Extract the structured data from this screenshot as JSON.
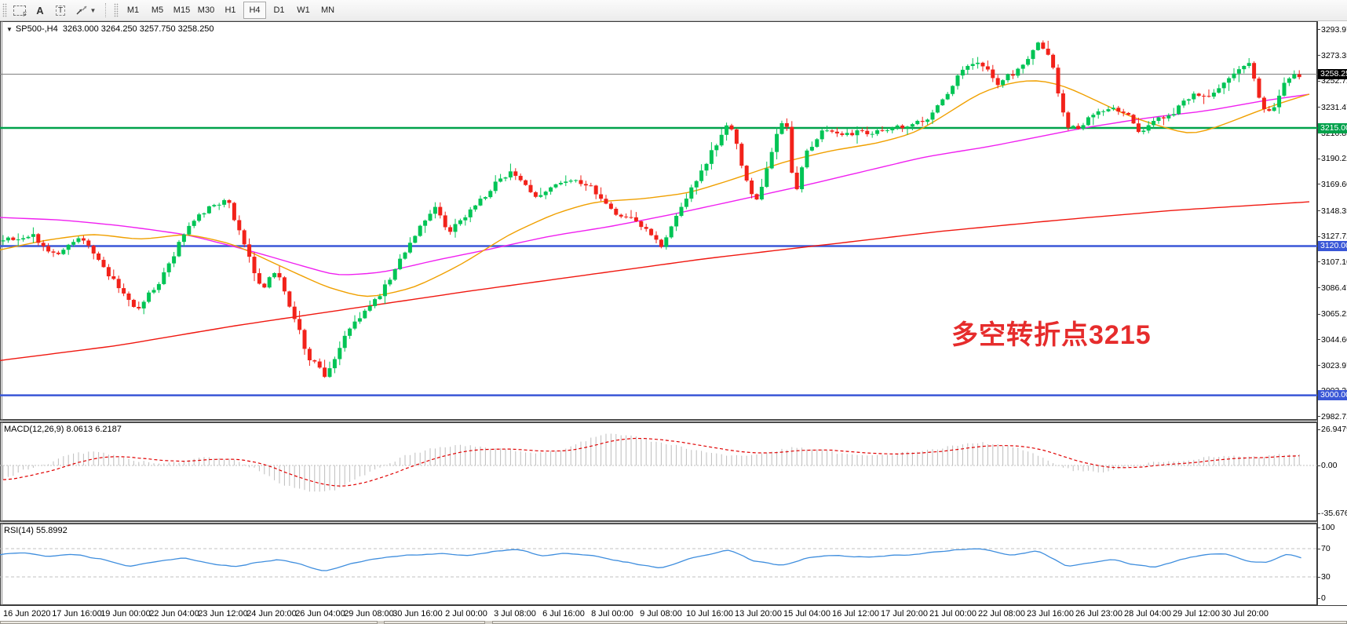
{
  "toolbar": {
    "icons": {
      "frame_label": "F",
      "text_a": "A",
      "text_t": "T",
      "arrows_glyph": "⇱⇲",
      "caret": "▼"
    },
    "timeframes": [
      "M1",
      "M5",
      "M15",
      "M30",
      "H1",
      "H4",
      "D1",
      "W1",
      "MN"
    ],
    "active_timeframe": "H4"
  },
  "header": {
    "collapse_caret": "▼",
    "symbol_period": "SP500-,H4",
    "ohlc": "3263.000 3264.250 3257.750 3258.250"
  },
  "annotation": {
    "text": "多空转折点3215",
    "color": "#e62c2c"
  },
  "chart_data": {
    "type": "candlestick",
    "symbol": "SP500-",
    "timeframe": "H4",
    "current_ohlc": {
      "open": 3263.0,
      "high": 3264.25,
      "low": 3257.75,
      "close": 3258.25
    },
    "colors": {
      "bull": "#00c455",
      "bear": "#f2221a",
      "ma_red": "#f01810",
      "ma_magenta": "#f020f0",
      "ma_orange": "#f0a000",
      "level_green": "#00a14b",
      "level_blue": "#3a57d7",
      "current_line": "#808080",
      "macd_histogram": "#bdbdbd",
      "macd_signal": "#e00000",
      "rsi_line": "#3f8ede"
    },
    "price_axis_ticks": [
      "3293.97",
      "3273.35",
      "3252.72",
      "3231.47",
      "3210.85",
      "3190.22",
      "3169.60",
      "3148.35",
      "3127.72",
      "3107.10",
      "3086.47",
      "3065.22",
      "3044.60",
      "3023.97",
      "3003.35",
      "2982.72"
    ],
    "levels": [
      {
        "value": 3258.25,
        "label": "3258.25",
        "kind": "current-price",
        "tag_bg": "#000000",
        "line_color": "#808080"
      },
      {
        "value": 3215.0,
        "label": "3215.00",
        "kind": "horizontal-line",
        "tag_bg": "#00a14b",
        "line_color": "#00a14b"
      },
      {
        "value": 3120.0,
        "label": "3120.00",
        "kind": "horizontal-line",
        "tag_bg": "#3a57d7",
        "line_color": "#3a57d7"
      },
      {
        "value": 3000.0,
        "label": "3000.00",
        "kind": "horizontal-line",
        "tag_bg": "#3a57d7",
        "line_color": "#3a57d7"
      }
    ],
    "time_labels": [
      "16 Jun 2020",
      "17 Jun 16:00",
      "19 Jun 00:00",
      "22 Jun 04:00",
      "23 Jun 12:00",
      "24 Jun 20:00",
      "26 Jun 04:00",
      "29 Jun 08:00",
      "30 Jun 16:00",
      "2 Jul 00:00",
      "3 Jul 08:00",
      "6 Jul 16:00",
      "8 Jul 00:00",
      "9 Jul 08:00",
      "10 Jul 16:00",
      "13 Jul 20:00",
      "15 Jul 04:00",
      "16 Jul 12:00",
      "17 Jul 20:00",
      "21 Jul 00:00",
      "22 Jul 08:00",
      "23 Jul 16:00",
      "26 Jul 23:00",
      "28 Jul 04:00",
      "29 Jul 12:00",
      "30 Jul 20:00"
    ],
    "close_path_anchors": [
      [
        3,
        3124
      ],
      [
        40,
        3130
      ],
      [
        70,
        3112
      ],
      [
        105,
        3128
      ],
      [
        140,
        3096
      ],
      [
        172,
        3068
      ],
      [
        205,
        3092
      ],
      [
        240,
        3138
      ],
      [
        268,
        3152
      ],
      [
        290,
        3157
      ],
      [
        312,
        3120
      ],
      [
        332,
        3085
      ],
      [
        352,
        3100
      ],
      [
        372,
        3068
      ],
      [
        392,
        3032
      ],
      [
        415,
        3016
      ],
      [
        438,
        3046
      ],
      [
        462,
        3066
      ],
      [
        485,
        3082
      ],
      [
        508,
        3106
      ],
      [
        532,
        3133
      ],
      [
        552,
        3152
      ],
      [
        572,
        3132
      ],
      [
        598,
        3148
      ],
      [
        625,
        3166
      ],
      [
        652,
        3182
      ],
      [
        680,
        3158
      ],
      [
        706,
        3170
      ],
      [
        730,
        3174
      ],
      [
        755,
        3166
      ],
      [
        782,
        3148
      ],
      [
        812,
        3140
      ],
      [
        842,
        3120
      ],
      [
        868,
        3152
      ],
      [
        896,
        3184
      ],
      [
        918,
        3208
      ],
      [
        930,
        3220
      ],
      [
        945,
        3186
      ],
      [
        962,
        3152
      ],
      [
        980,
        3190
      ],
      [
        1000,
        3228
      ],
      [
        1012,
        3160
      ],
      [
        1028,
        3196
      ],
      [
        1048,
        3215
      ],
      [
        1068,
        3208
      ],
      [
        1090,
        3212
      ],
      [
        1112,
        3210
      ],
      [
        1135,
        3214
      ],
      [
        1158,
        3216
      ],
      [
        1180,
        3222
      ],
      [
        1205,
        3242
      ],
      [
        1228,
        3262
      ],
      [
        1250,
        3268
      ],
      [
        1272,
        3250
      ],
      [
        1296,
        3262
      ],
      [
        1322,
        3282
      ],
      [
        1340,
        3268
      ],
      [
        1358,
        3216
      ],
      [
        1375,
        3214
      ],
      [
        1395,
        3228
      ],
      [
        1415,
        3232
      ],
      [
        1435,
        3226
      ],
      [
        1452,
        3212
      ],
      [
        1470,
        3222
      ],
      [
        1490,
        3224
      ],
      [
        1508,
        3236
      ],
      [
        1525,
        3242
      ],
      [
        1540,
        3238
      ],
      [
        1558,
        3250
      ],
      [
        1575,
        3262
      ],
      [
        1592,
        3268
      ],
      [
        1606,
        3236
      ],
      [
        1620,
        3224
      ],
      [
        1634,
        3250
      ],
      [
        1648,
        3256
      ],
      [
        1658,
        3258.25
      ]
    ],
    "ma_red_anchors": [
      [
        0,
        3028
      ],
      [
        150,
        3040
      ],
      [
        300,
        3056
      ],
      [
        450,
        3070
      ],
      [
        600,
        3084
      ],
      [
        750,
        3097
      ],
      [
        900,
        3110
      ],
      [
        1050,
        3121
      ],
      [
        1200,
        3132
      ],
      [
        1350,
        3141
      ],
      [
        1500,
        3149
      ],
      [
        1678,
        3156
      ]
    ],
    "ma_magenta_anchors": [
      [
        0,
        3143
      ],
      [
        80,
        3141
      ],
      [
        160,
        3136
      ],
      [
        240,
        3129
      ],
      [
        320,
        3116
      ],
      [
        380,
        3105
      ],
      [
        430,
        3096
      ],
      [
        490,
        3099
      ],
      [
        550,
        3108
      ],
      [
        620,
        3117
      ],
      [
        700,
        3128
      ],
      [
        780,
        3136
      ],
      [
        860,
        3146
      ],
      [
        940,
        3157
      ],
      [
        1020,
        3168
      ],
      [
        1100,
        3180
      ],
      [
        1180,
        3192
      ],
      [
        1260,
        3200
      ],
      [
        1300,
        3205
      ],
      [
        1380,
        3215
      ],
      [
        1460,
        3223
      ],
      [
        1540,
        3229
      ],
      [
        1610,
        3237
      ],
      [
        1678,
        3243
      ]
    ],
    "ma_orange_anchors": [
      [
        0,
        3117
      ],
      [
        60,
        3125
      ],
      [
        120,
        3130
      ],
      [
        180,
        3125
      ],
      [
        240,
        3130
      ],
      [
        300,
        3121
      ],
      [
        360,
        3103
      ],
      [
        420,
        3086
      ],
      [
        470,
        3078
      ],
      [
        530,
        3087
      ],
      [
        590,
        3106
      ],
      [
        650,
        3130
      ],
      [
        710,
        3147
      ],
      [
        760,
        3156
      ],
      [
        820,
        3158
      ],
      [
        880,
        3163
      ],
      [
        940,
        3175
      ],
      [
        1000,
        3188
      ],
      [
        1060,
        3197
      ],
      [
        1120,
        3203
      ],
      [
        1170,
        3212
      ],
      [
        1210,
        3228
      ],
      [
        1250,
        3244
      ],
      [
        1290,
        3252
      ],
      [
        1325,
        3254
      ],
      [
        1360,
        3248
      ],
      [
        1400,
        3236
      ],
      [
        1440,
        3224
      ],
      [
        1480,
        3216
      ],
      [
        1520,
        3209
      ],
      [
        1560,
        3218
      ],
      [
        1600,
        3228
      ],
      [
        1640,
        3237
      ],
      [
        1678,
        3244
      ]
    ],
    "macd": {
      "label": "MACD(12,26,9)",
      "main_value": 8.0613,
      "signal_value": 6.2187,
      "display_main": "8.0613",
      "display_signal": "6.2187",
      "axis": [
        "26.9479",
        "0.00",
        "-35.6767"
      ],
      "histogram_anchors": [
        [
          0,
          -12
        ],
        [
          30,
          -3
        ],
        [
          55,
          0
        ],
        [
          90,
          9
        ],
        [
          130,
          10
        ],
        [
          160,
          5
        ],
        [
          200,
          1
        ],
        [
          230,
          2
        ],
        [
          260,
          6
        ],
        [
          300,
          4
        ],
        [
          330,
          -4
        ],
        [
          360,
          -14
        ],
        [
          395,
          -20
        ],
        [
          430,
          -18
        ],
        [
          460,
          -8
        ],
        [
          490,
          0
        ],
        [
          520,
          8
        ],
        [
          560,
          14
        ],
        [
          590,
          15
        ],
        [
          620,
          13
        ],
        [
          650,
          12
        ],
        [
          680,
          9
        ],
        [
          710,
          11
        ],
        [
          740,
          17
        ],
        [
          770,
          24
        ],
        [
          800,
          23
        ],
        [
          830,
          18
        ],
        [
          860,
          15
        ],
        [
          890,
          11
        ],
        [
          920,
          8
        ],
        [
          950,
          7
        ],
        [
          980,
          10
        ],
        [
          1010,
          13
        ],
        [
          1040,
          12
        ],
        [
          1070,
          9
        ],
        [
          1100,
          7
        ],
        [
          1130,
          8
        ],
        [
          1160,
          10
        ],
        [
          1190,
          12
        ],
        [
          1220,
          15
        ],
        [
          1250,
          17
        ],
        [
          1285,
          15
        ],
        [
          1310,
          10
        ],
        [
          1340,
          2
        ],
        [
          1370,
          -4
        ],
        [
          1400,
          -5
        ],
        [
          1425,
          -3
        ],
        [
          1450,
          0
        ],
        [
          1480,
          3
        ],
        [
          1510,
          4
        ],
        [
          1540,
          6
        ],
        [
          1570,
          7
        ],
        [
          1600,
          6
        ],
        [
          1630,
          8
        ],
        [
          1658,
          8.06
        ]
      ]
    },
    "rsi": {
      "label": "RSI(14)",
      "value": 55.8992,
      "display_value": "55.8992",
      "axis": [
        "100",
        "70",
        "30",
        "0"
      ],
      "levels": [
        70,
        30
      ],
      "line_anchors": [
        [
          0,
          62
        ],
        [
          40,
          64
        ],
        [
          60,
          58
        ],
        [
          90,
          63
        ],
        [
          130,
          55
        ],
        [
          165,
          44
        ],
        [
          200,
          52
        ],
        [
          235,
          57
        ],
        [
          270,
          49
        ],
        [
          300,
          44
        ],
        [
          330,
          51
        ],
        [
          360,
          55
        ],
        [
          385,
          47
        ],
        [
          415,
          38
        ],
        [
          445,
          49
        ],
        [
          480,
          56
        ],
        [
          520,
          61
        ],
        [
          560,
          63
        ],
        [
          600,
          60
        ],
        [
          630,
          66
        ],
        [
          660,
          70
        ],
        [
          690,
          59
        ],
        [
          720,
          64
        ],
        [
          755,
          60
        ],
        [
          790,
          52
        ],
        [
          842,
          42
        ],
        [
          880,
          56
        ],
        [
          930,
          69
        ],
        [
          960,
          52
        ],
        [
          1000,
          46
        ],
        [
          1030,
          58
        ],
        [
          1068,
          60
        ],
        [
          1100,
          58
        ],
        [
          1135,
          60
        ],
        [
          1165,
          62
        ],
        [
          1200,
          66
        ],
        [
          1235,
          70
        ],
        [
          1260,
          69
        ],
        [
          1285,
          60
        ],
        [
          1322,
          68
        ],
        [
          1360,
          44
        ],
        [
          1395,
          52
        ],
        [
          1420,
          55
        ],
        [
          1440,
          47
        ],
        [
          1475,
          44
        ],
        [
          1505,
          55
        ],
        [
          1535,
          62
        ],
        [
          1560,
          63
        ],
        [
          1590,
          52
        ],
        [
          1615,
          50
        ],
        [
          1640,
          63
        ],
        [
          1658,
          56
        ]
      ]
    }
  }
}
